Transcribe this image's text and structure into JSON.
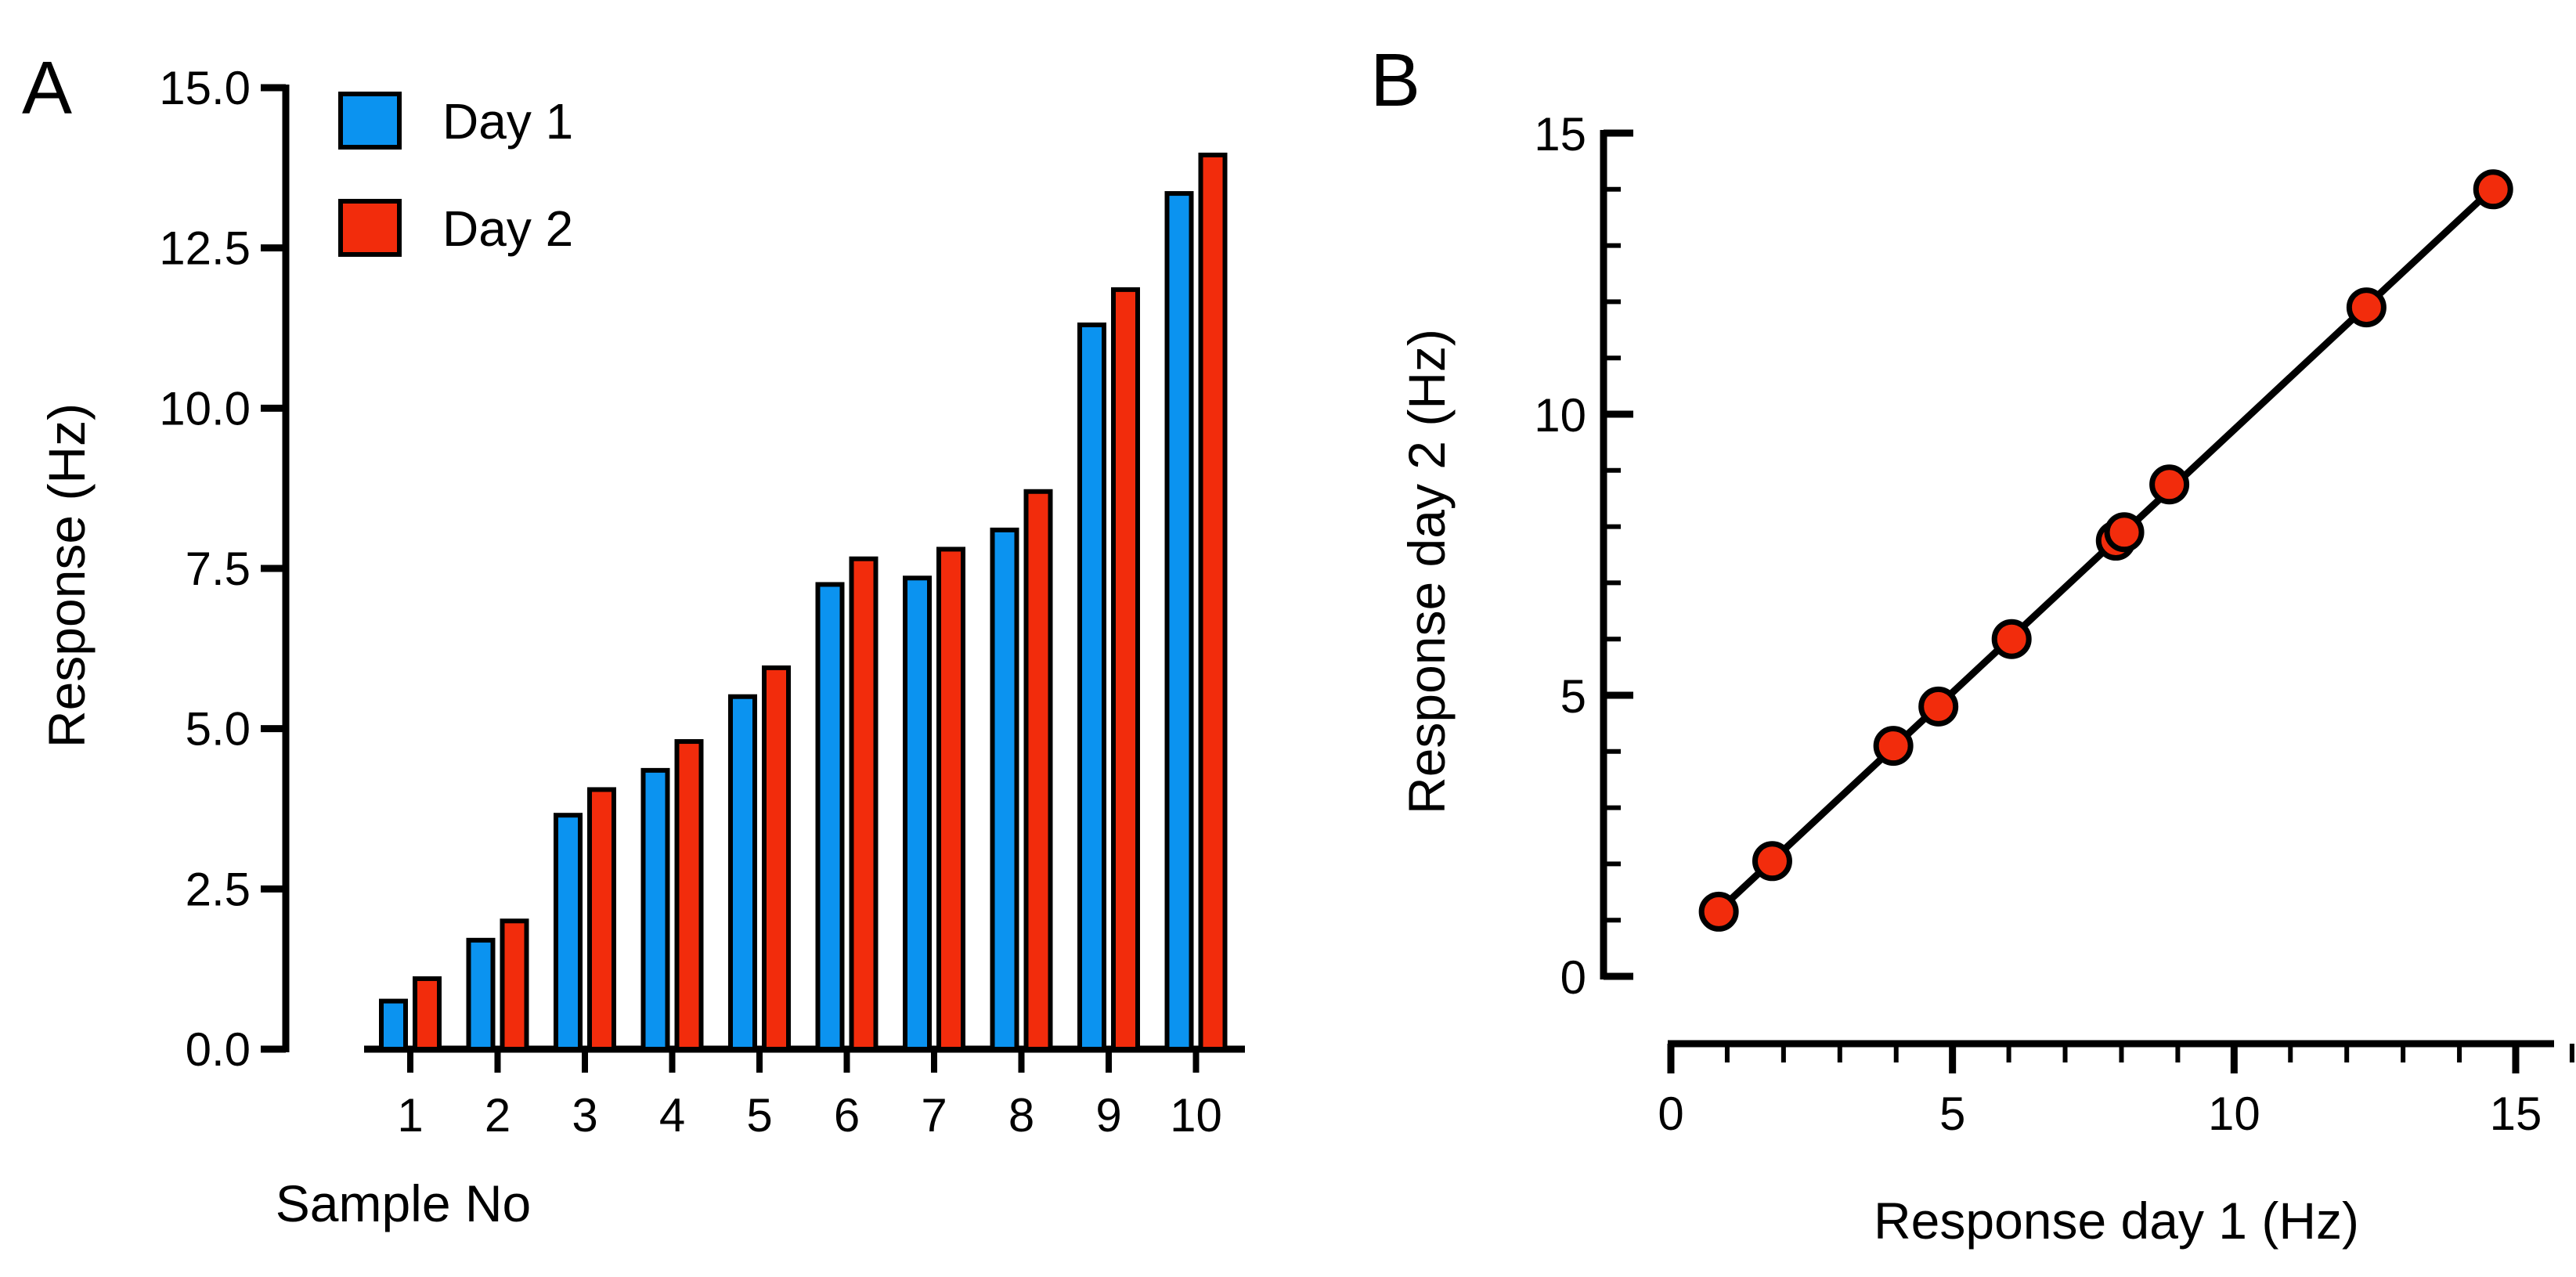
{
  "colors": {
    "day1": "#0b93f0",
    "day2": "#f22c0c",
    "axis": "#000000"
  },
  "chart_data": [
    {
      "panel": "A",
      "type": "bar",
      "xlabel": "Sample No",
      "ylabel": "Response (Hz)",
      "categories": [
        "1",
        "2",
        "3",
        "4",
        "5",
        "6",
        "7",
        "8",
        "9",
        "10"
      ],
      "ylim": [
        0,
        15
      ],
      "yticks": [
        "0.0",
        "2.5",
        "5.0",
        "7.5",
        "10.0",
        "12.5",
        "15.0"
      ],
      "legend_position": "top-left",
      "series": [
        {
          "name": "Day 1",
          "values": [
            0.75,
            1.7,
            3.65,
            4.35,
            5.5,
            7.25,
            7.35,
            8.1,
            11.3,
            13.35
          ]
        },
        {
          "name": "Day 2",
          "values": [
            1.1,
            2.0,
            4.05,
            4.8,
            5.95,
            7.65,
            7.8,
            8.7,
            11.85,
            13.95
          ]
        }
      ]
    },
    {
      "panel": "B",
      "type": "scatter",
      "xlabel": "Response day 1 (Hz)",
      "ylabel": "Response day 2 (Hz)",
      "xlim": [
        0,
        15
      ],
      "ylim": [
        0,
        15
      ],
      "xticks": [
        "0",
        "5",
        "10",
        "15"
      ],
      "yticks": [
        "0",
        "5",
        "10",
        "15"
      ],
      "regression_line": true,
      "points": [
        {
          "x": 0.85,
          "y": 1.15
        },
        {
          "x": 1.8,
          "y": 2.05
        },
        {
          "x": 3.95,
          "y": 4.1
        },
        {
          "x": 4.75,
          "y": 4.8
        },
        {
          "x": 6.05,
          "y": 6.0
        },
        {
          "x": 7.9,
          "y": 7.75
        },
        {
          "x": 8.05,
          "y": 7.9
        },
        {
          "x": 8.85,
          "y": 8.75
        },
        {
          "x": 12.35,
          "y": 11.9
        },
        {
          "x": 14.6,
          "y": 14.0
        }
      ]
    }
  ]
}
